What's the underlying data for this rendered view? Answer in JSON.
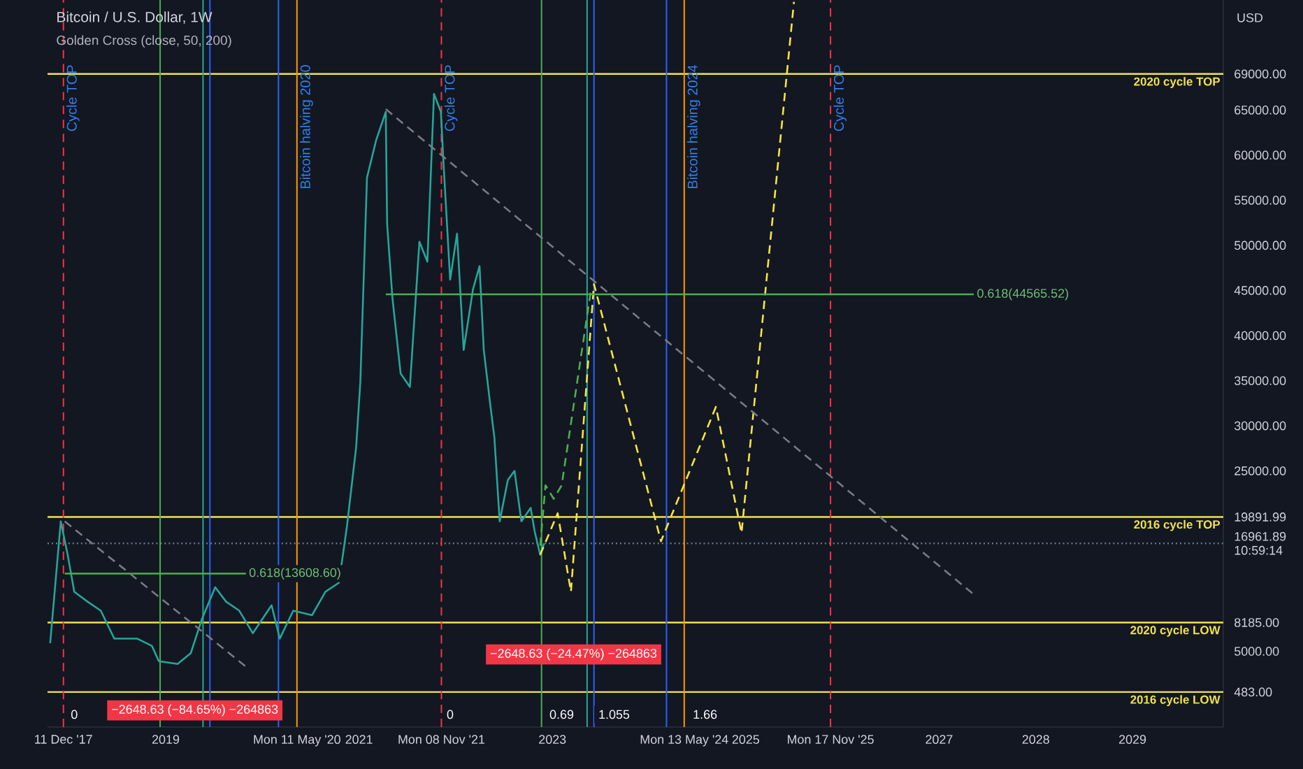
{
  "chart_data": {
    "type": "line",
    "title": "Bitcoin / U.S. Dollar, 1W",
    "subtitle": "Golden Cross (close, 50, 200)",
    "ylabel": "USD",
    "xlim": [
      "2017-10-12",
      "2029-12-10"
    ],
    "ylim": [
      -3400,
      77200
    ],
    "xticks": [
      {
        "value": "2017-12-11",
        "label": "11 Dec '17"
      },
      {
        "value": "2019-01-01",
        "label": "2019"
      },
      {
        "value": "2020-05-11",
        "label": "Mon 11 May '20"
      },
      {
        "value": "2021-01-01",
        "label": "2021"
      },
      {
        "value": "2021-11-08",
        "label": "Mon 08 Nov '21"
      },
      {
        "value": "2023-01-01",
        "label": "2023"
      },
      {
        "value": "2024-05-13",
        "label": "Mon 13 May '24"
      },
      {
        "value": "2025-01-01",
        "label": "2025"
      },
      {
        "value": "2025-11-17",
        "label": "Mon 17 Nov '25"
      },
      {
        "value": "2027-01-01",
        "label": "2027"
      },
      {
        "value": "2028-01-01",
        "label": "2028"
      },
      {
        "value": "2029-01-01",
        "label": "2029"
      }
    ],
    "yticks": [
      {
        "value": 483,
        "label": "483.00"
      },
      {
        "value": 5000,
        "label": "5000.00"
      },
      {
        "value": 8185,
        "label": "8185.00"
      },
      {
        "value": 16961.89,
        "label": "16961.89 10:59:14"
      },
      {
        "value": 19891.99,
        "label": "19891.99"
      },
      {
        "value": 25000,
        "label": "25000.00"
      },
      {
        "value": 30000,
        "label": "30000.00"
      },
      {
        "value": 35000,
        "label": "35000.00"
      },
      {
        "value": 40000,
        "label": "40000.00"
      },
      {
        "value": 45000,
        "label": "45000.00"
      },
      {
        "value": 50000,
        "label": "50000.00"
      },
      {
        "value": 55000,
        "label": "55000.00"
      },
      {
        "value": 60000,
        "label": "60000.00"
      },
      {
        "value": 65000,
        "label": "65000.00"
      },
      {
        "value": 69000,
        "label": "69000.00"
      }
    ],
    "series": [
      {
        "color": "#26a69a",
        "line_style": "solid",
        "x": [
          "2017-10-22",
          "2017-12-01",
          "2017-12-27",
          "2018-01-21",
          "2018-03-12",
          "2018-05-01",
          "2018-06-21",
          "2018-09-16",
          "2018-11-10",
          "2018-12-06",
          "2019-02-15",
          "2019-04-06",
          "2019-05-17",
          "2019-07-07",
          "2019-08-17",
          "2019-10-06",
          "2019-11-26",
          "2020-02-05",
          "2020-03-07",
          "2020-04-27",
          "2020-07-07",
          "2020-08-27",
          "2020-10-17",
          "2020-11-16",
          "2020-12-21",
          "2021-01-06",
          "2021-01-31",
          "2021-03-07",
          "2021-04-12",
          "2021-04-17",
          "2021-05-07",
          "2021-06-07",
          "2021-07-12",
          "2021-08-17",
          "2021-09-16",
          "2021-10-11",
          "2021-11-06",
          "2021-11-16",
          "2021-12-11",
          "2022-01-06",
          "2022-01-31",
          "2022-03-07",
          "2022-04-01",
          "2022-04-17",
          "2022-05-12",
          "2022-05-27",
          "2022-06-16",
          "2022-07-17",
          "2022-08-11",
          "2022-09-06",
          "2022-10-11",
          "2022-10-26",
          "2022-11-16",
          "2022-12-01"
        ],
        "values": [
          5900,
          19400,
          15700,
          11600,
          10500,
          9500,
          6400,
          6400,
          5600,
          3900,
          3600,
          4800,
          8500,
          12100,
          10500,
          9500,
          7000,
          10100,
          6400,
          9500,
          9000,
          11600,
          12600,
          18800,
          27600,
          34900,
          57500,
          61700,
          64800,
          52400,
          44200,
          35800,
          34300,
          50400,
          48200,
          66800,
          64800,
          59100,
          46200,
          51300,
          38400,
          45100,
          47700,
          38400,
          32200,
          28700,
          19400,
          24000,
          25000,
          19400,
          20900,
          18300,
          15700,
          16960
        ]
      },
      {
        "color": "#f5e642",
        "line_style": "dashed",
        "x": [
          "2022-11-16",
          "2023-01-21",
          "2023-03-12",
          "2023-06-07",
          "2024-02-15",
          "2024-09-10",
          "2024-12-16",
          "2025-07-02"
        ],
        "values": [
          15700,
          20300,
          11600,
          45700,
          17200,
          32100,
          18100,
          77000
        ]
      },
      {
        "color": "#4caf50",
        "line_style": "dashed",
        "x": [
          "2022-11-16",
          "2022-12-06",
          "2023-01-06",
          "2023-02-05",
          "2023-05-27"
        ],
        "values": [
          16700,
          23400,
          21900,
          23400,
          45100
        ]
      },
      {
        "color": "#4caf50",
        "line_style": "solid",
        "x": [
          "2021-04-12",
          "2027-05-12"
        ],
        "values": [
          44565.52,
          44565.52
        ]
      },
      {
        "color": "#4caf50",
        "line_style": "solid",
        "x": [
          "2017-12-16",
          "2019-10-31"
        ],
        "values": [
          13608.6,
          13608.6
        ]
      },
      {
        "color": "#787b86",
        "line_style": "dashed",
        "x": [
          "2021-04-12",
          "2027-05-12"
        ],
        "values": [
          65100,
          11300
        ]
      },
      {
        "color": "#787b86",
        "line_style": "dashed",
        "x": [
          "2017-12-16",
          "2019-10-31"
        ],
        "values": [
          19400,
          3300
        ]
      }
    ],
    "ref_lines": [
      {
        "axis": "y",
        "value": 69000,
        "label": "2020 cycle TOP",
        "color": "#f2e34a",
        "line_style": "solid"
      },
      {
        "axis": "y",
        "value": 19891.99,
        "label": "2016 cycle TOP",
        "color": "#f2e34a",
        "line_style": "solid"
      },
      {
        "axis": "y",
        "value": 16961.89,
        "color": "#5d7a8a",
        "line_style": "dotted"
      },
      {
        "axis": "y",
        "value": 8185,
        "label": "2020 cycle LOW",
        "color": "#f2e34a",
        "line_style": "solid"
      },
      {
        "axis": "y",
        "value": 483,
        "label": "2016 cycle LOW",
        "color": "#f2e34a",
        "line_style": "solid"
      },
      {
        "axis": "x",
        "value": "2017-12-11",
        "label": "Cycle TOP",
        "color": "#f23645",
        "line_style": "dashed"
      },
      {
        "axis": "x",
        "value": "2021-11-08",
        "label": "Cycle TOP",
        "color": "#f23645",
        "line_style": "dashed"
      },
      {
        "axis": "x",
        "value": "2025-11-17",
        "label": "Cycle TOP",
        "color": "#f23645",
        "line_style": "dashed"
      },
      {
        "axis": "x",
        "value": "2020-05-11",
        "label": "Bitcoin halving 2020",
        "color": "#ff9800",
        "line_style": "solid"
      },
      {
        "axis": "x",
        "value": "2024-05-13",
        "label": "Bitcoin halving 2024",
        "color": "#ff9800",
        "line_style": "solid"
      },
      {
        "axis": "x",
        "value": "2018-12-11",
        "color": "#4caf50",
        "line_style": "solid"
      },
      {
        "axis": "x",
        "value": "2019-05-22",
        "color": "#26a69a",
        "line_style": "solid"
      },
      {
        "axis": "x",
        "value": "2019-06-17",
        "color": "#2962ff",
        "line_style": "solid"
      },
      {
        "axis": "x",
        "value": "2020-03-02",
        "color": "#2962ff",
        "line_style": "solid"
      },
      {
        "axis": "x",
        "value": "2022-11-21",
        "color": "#4caf50",
        "line_style": "solid"
      },
      {
        "axis": "x",
        "value": "2023-05-12",
        "color": "#26a69a",
        "line_style": "solid"
      },
      {
        "axis": "x",
        "value": "2023-06-07",
        "color": "#2962ff",
        "line_style": "solid"
      },
      {
        "axis": "x",
        "value": "2024-03-07",
        "color": "#2962ff",
        "line_style": "solid"
      }
    ],
    "annotations": [
      {
        "text": "0.618(44565.52)",
        "x": "2027-05-12",
        "y": 44565.52
      },
      {
        "text": "0.618(13608.60)",
        "x": "2019-10-31",
        "y": 13608.6
      },
      "−2648.63 (−24.47%) −264863",
      "−2648.63 (−84.65%) −264863",
      "0",
      "0",
      "0.69",
      "1.055",
      "1.66"
    ]
  }
}
